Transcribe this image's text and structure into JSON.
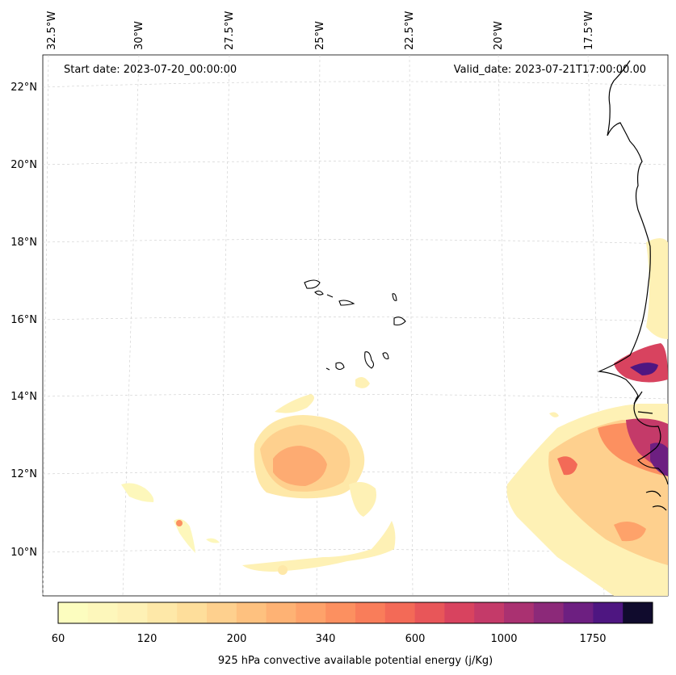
{
  "header": {
    "start_date": "Start date: 2023-07-20_00:00:00",
    "valid_date": "Valid_date: 2023-07-21T17:00:00.00"
  },
  "axes": {
    "lon_ticks": [
      "32.5°W",
      "30°W",
      "27.5°W",
      "25°W",
      "22.5°W",
      "20°W",
      "17.5°W"
    ],
    "lat_ticks": [
      "22°N",
      "20°N",
      "18°N",
      "16°N",
      "14°N",
      "12°N",
      "10°N"
    ]
  },
  "colorbar": {
    "label": "925 hPa convective available potential energy (j/Kg)",
    "tick_labels": [
      "60",
      "120",
      "200",
      "340",
      "600",
      "1000",
      "1750"
    ],
    "colors": [
      "#fcfdbf",
      "#fdf7bb",
      "#fef1b5",
      "#fee8a8",
      "#fede9b",
      "#fed08e",
      "#fec17f",
      "#feb274",
      "#fea26a",
      "#fc9060",
      "#f97d5a",
      "#f36a57",
      "#e85659",
      "#d8435f",
      "#c43a69",
      "#aa3171",
      "#8c2979",
      "#6d1f81",
      "#4e1681",
      "#100b2d"
    ]
  },
  "map": {
    "projection_note": "",
    "coastline_color": "#000000",
    "gridline_color": "#cccccc"
  }
}
